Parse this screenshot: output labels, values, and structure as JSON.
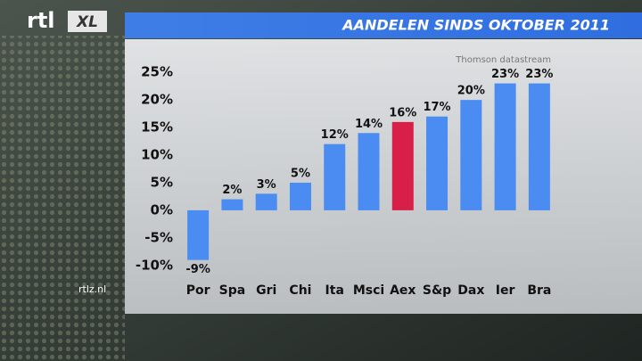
{
  "logo": {
    "text": "rtl",
    "badge": "XL"
  },
  "site": "rtlz.nl",
  "chart_data": {
    "type": "bar",
    "title": "AANDELEN SINDS OKTOBER 2011",
    "source": "Thomson datastream",
    "categories": [
      "Por",
      "Spa",
      "Gri",
      "Chi",
      "Ita",
      "Msci",
      "Aex",
      "S&p",
      "Dax",
      "Ier",
      "Bra"
    ],
    "values": [
      -9,
      2,
      3,
      5,
      12,
      14,
      16,
      17,
      20,
      23,
      23
    ],
    "value_labels": [
      "-9%",
      "2%",
      "3%",
      "5%",
      "12%",
      "14%",
      "16%",
      "17%",
      "20%",
      "23%",
      "23%"
    ],
    "colors": [
      "#4a8cf2",
      "#4a8cf2",
      "#4a8cf2",
      "#4a8cf2",
      "#4a8cf2",
      "#4a8cf2",
      "#d81f48",
      "#4a8cf2",
      "#4a8cf2",
      "#4a8cf2",
      "#4a8cf2"
    ],
    "ylim": [
      -11,
      26
    ],
    "yticks": [
      {
        "value": 25,
        "label": "25%"
      },
      {
        "value": 20,
        "label": "20%"
      },
      {
        "value": 15,
        "label": "15%"
      },
      {
        "value": 10,
        "label": "10%"
      },
      {
        "value": 5,
        "label": "5%"
      },
      {
        "value": 0,
        "label": "0%"
      },
      {
        "value": -5,
        "label": "-5%"
      },
      {
        "value": -10,
        "label": "-10%"
      }
    ],
    "grid": false
  }
}
